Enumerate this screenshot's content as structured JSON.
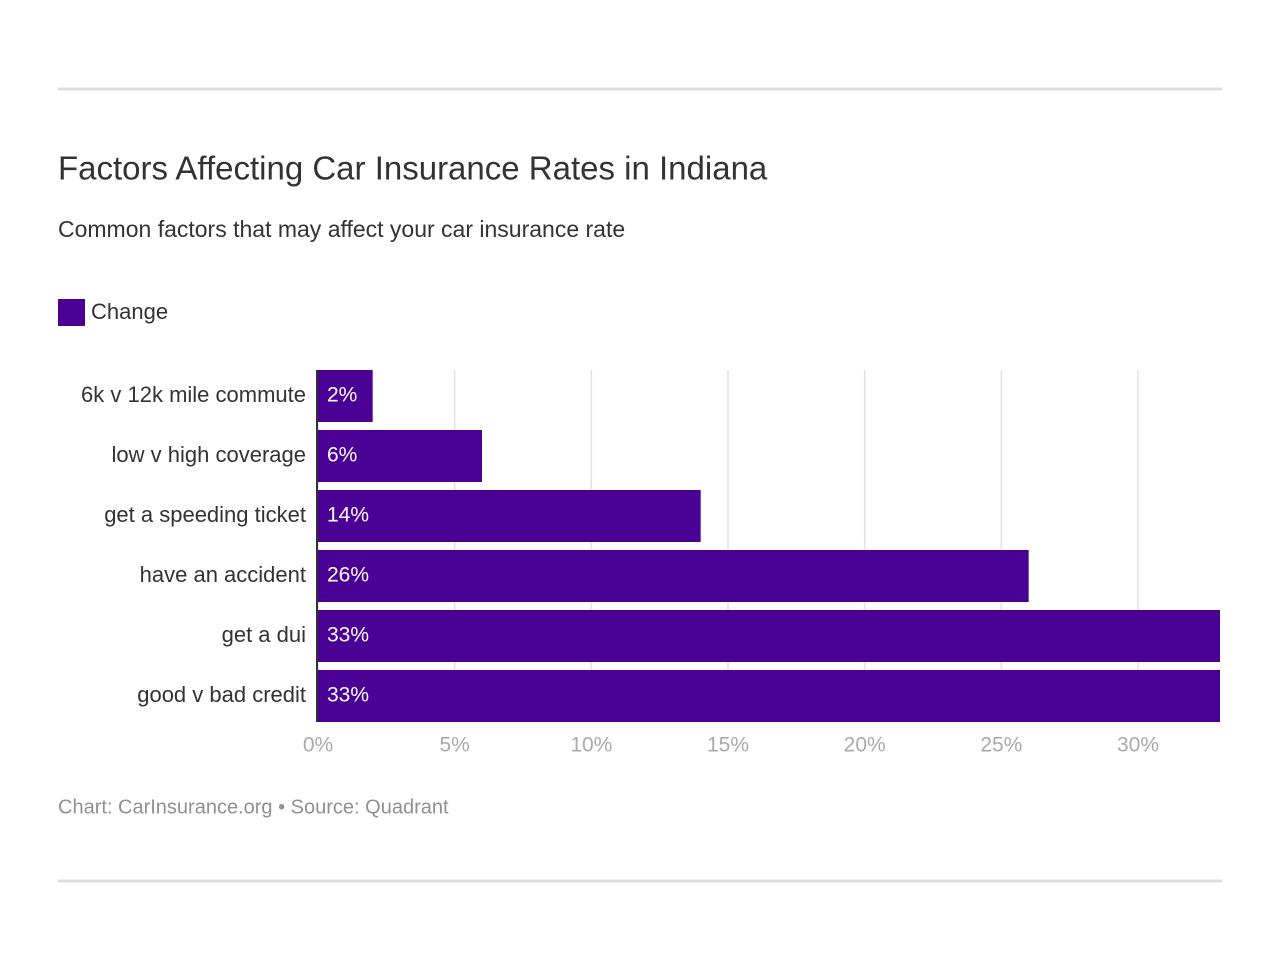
{
  "chart_data": {
    "type": "bar",
    "orientation": "horizontal",
    "title": "Factors Affecting Car Insurance Rates in Indiana",
    "subtitle": "Common factors that may affect your car insurance rate",
    "source": "Chart: CarInsurance.org • Source: Quadrant",
    "categories": [
      "6k v 12k mile commute",
      "low v high coverage",
      "get a speeding ticket",
      "have an accident",
      "get a dui",
      "good v bad credit"
    ],
    "series": [
      {
        "name": "Change",
        "color": "#4b0095",
        "values": [
          2,
          6,
          14,
          26,
          33,
          33
        ],
        "value_labels": [
          "2%",
          "6%",
          "14%",
          "26%",
          "33%",
          "33%"
        ]
      }
    ],
    "xlim": [
      0,
      33
    ],
    "xticks": [
      {
        "value": 0,
        "label": "0%"
      },
      {
        "value": 5,
        "label": "5%"
      },
      {
        "value": 10,
        "label": "10%"
      },
      {
        "value": 15,
        "label": "15%"
      },
      {
        "value": 20,
        "label": "20%"
      },
      {
        "value": 25,
        "label": "25%"
      },
      {
        "value": 30,
        "label": "30%"
      }
    ],
    "grid": true
  }
}
